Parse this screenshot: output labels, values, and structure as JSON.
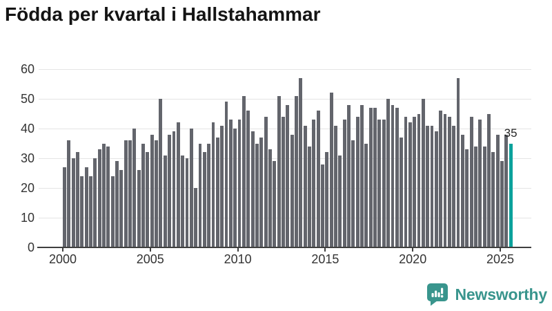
{
  "title": "Födda per kvartal i Hallstahammar",
  "chart_data": {
    "type": "bar",
    "title": "Födda per kvartal i Hallstahammar",
    "frequency": "quarterly",
    "start_quarter": "2000 Q1",
    "end_quarter": "2025 Q3",
    "values": [
      27,
      36,
      30,
      32,
      24,
      27,
      24,
      30,
      33,
      35,
      34,
      24,
      29,
      26,
      36,
      36,
      40,
      26,
      35,
      32,
      38,
      36,
      50,
      31,
      38,
      39,
      42,
      31,
      30,
      40,
      20,
      35,
      32,
      35,
      42,
      37,
      41,
      49,
      43,
      40,
      43,
      51,
      46,
      39,
      35,
      37,
      44,
      33,
      29,
      51,
      44,
      48,
      38,
      51,
      57,
      41,
      34,
      43,
      46,
      28,
      32,
      52,
      41,
      31,
      43,
      48,
      36,
      44,
      48,
      35,
      47,
      47,
      43,
      43,
      50,
      48,
      47,
      37,
      44,
      42,
      44,
      45,
      50,
      41,
      41,
      39,
      46,
      45,
      44,
      41,
      57,
      38,
      33,
      44,
      34,
      43,
      34,
      45,
      32,
      38,
      29,
      38,
      35
    ],
    "x_tick_labels": [
      "2000",
      "2005",
      "2010",
      "2015",
      "2020",
      "2025"
    ],
    "y_tick_labels": [
      "0",
      "10",
      "20",
      "30",
      "40",
      "50",
      "60"
    ],
    "ylim": [
      0,
      60
    ],
    "grid": "horizontal",
    "legend": "none",
    "highlight_last": {
      "value": 35,
      "label": "35"
    }
  },
  "colors": {
    "bar": "#63656c",
    "highlight_bar": "#0ba29c",
    "axis": "#3f3f3f",
    "tick_label": "#333333",
    "grid_line": "#e4e4e4",
    "title_text": "#141414",
    "brand_teal": "#39958d"
  },
  "footer": {
    "brand_name": "Newsworthy"
  }
}
